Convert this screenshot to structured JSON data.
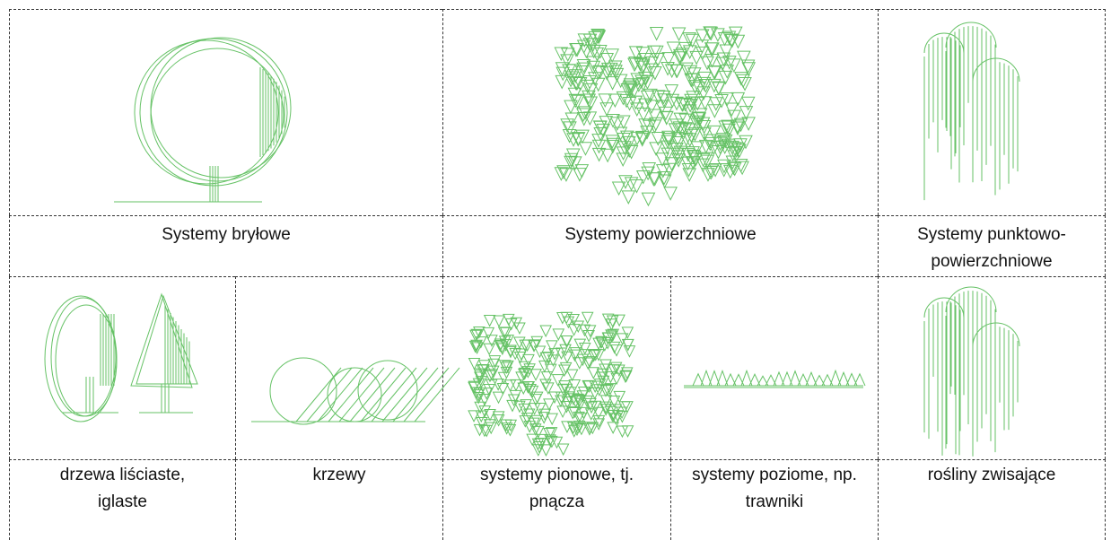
{
  "top_row": {
    "labels": [
      "Systemy bryłowe",
      "Systemy powierzchniowe",
      "Systemy punktowo-powierzchniowe"
    ]
  },
  "bottom_row": {
    "labels": [
      "drzewa liściaste, iglaste",
      "krzewy",
      "systemy pionowe, tj. pnącza",
      "systemy poziome, np. trawniki",
      "rośliny zwisające"
    ]
  }
}
